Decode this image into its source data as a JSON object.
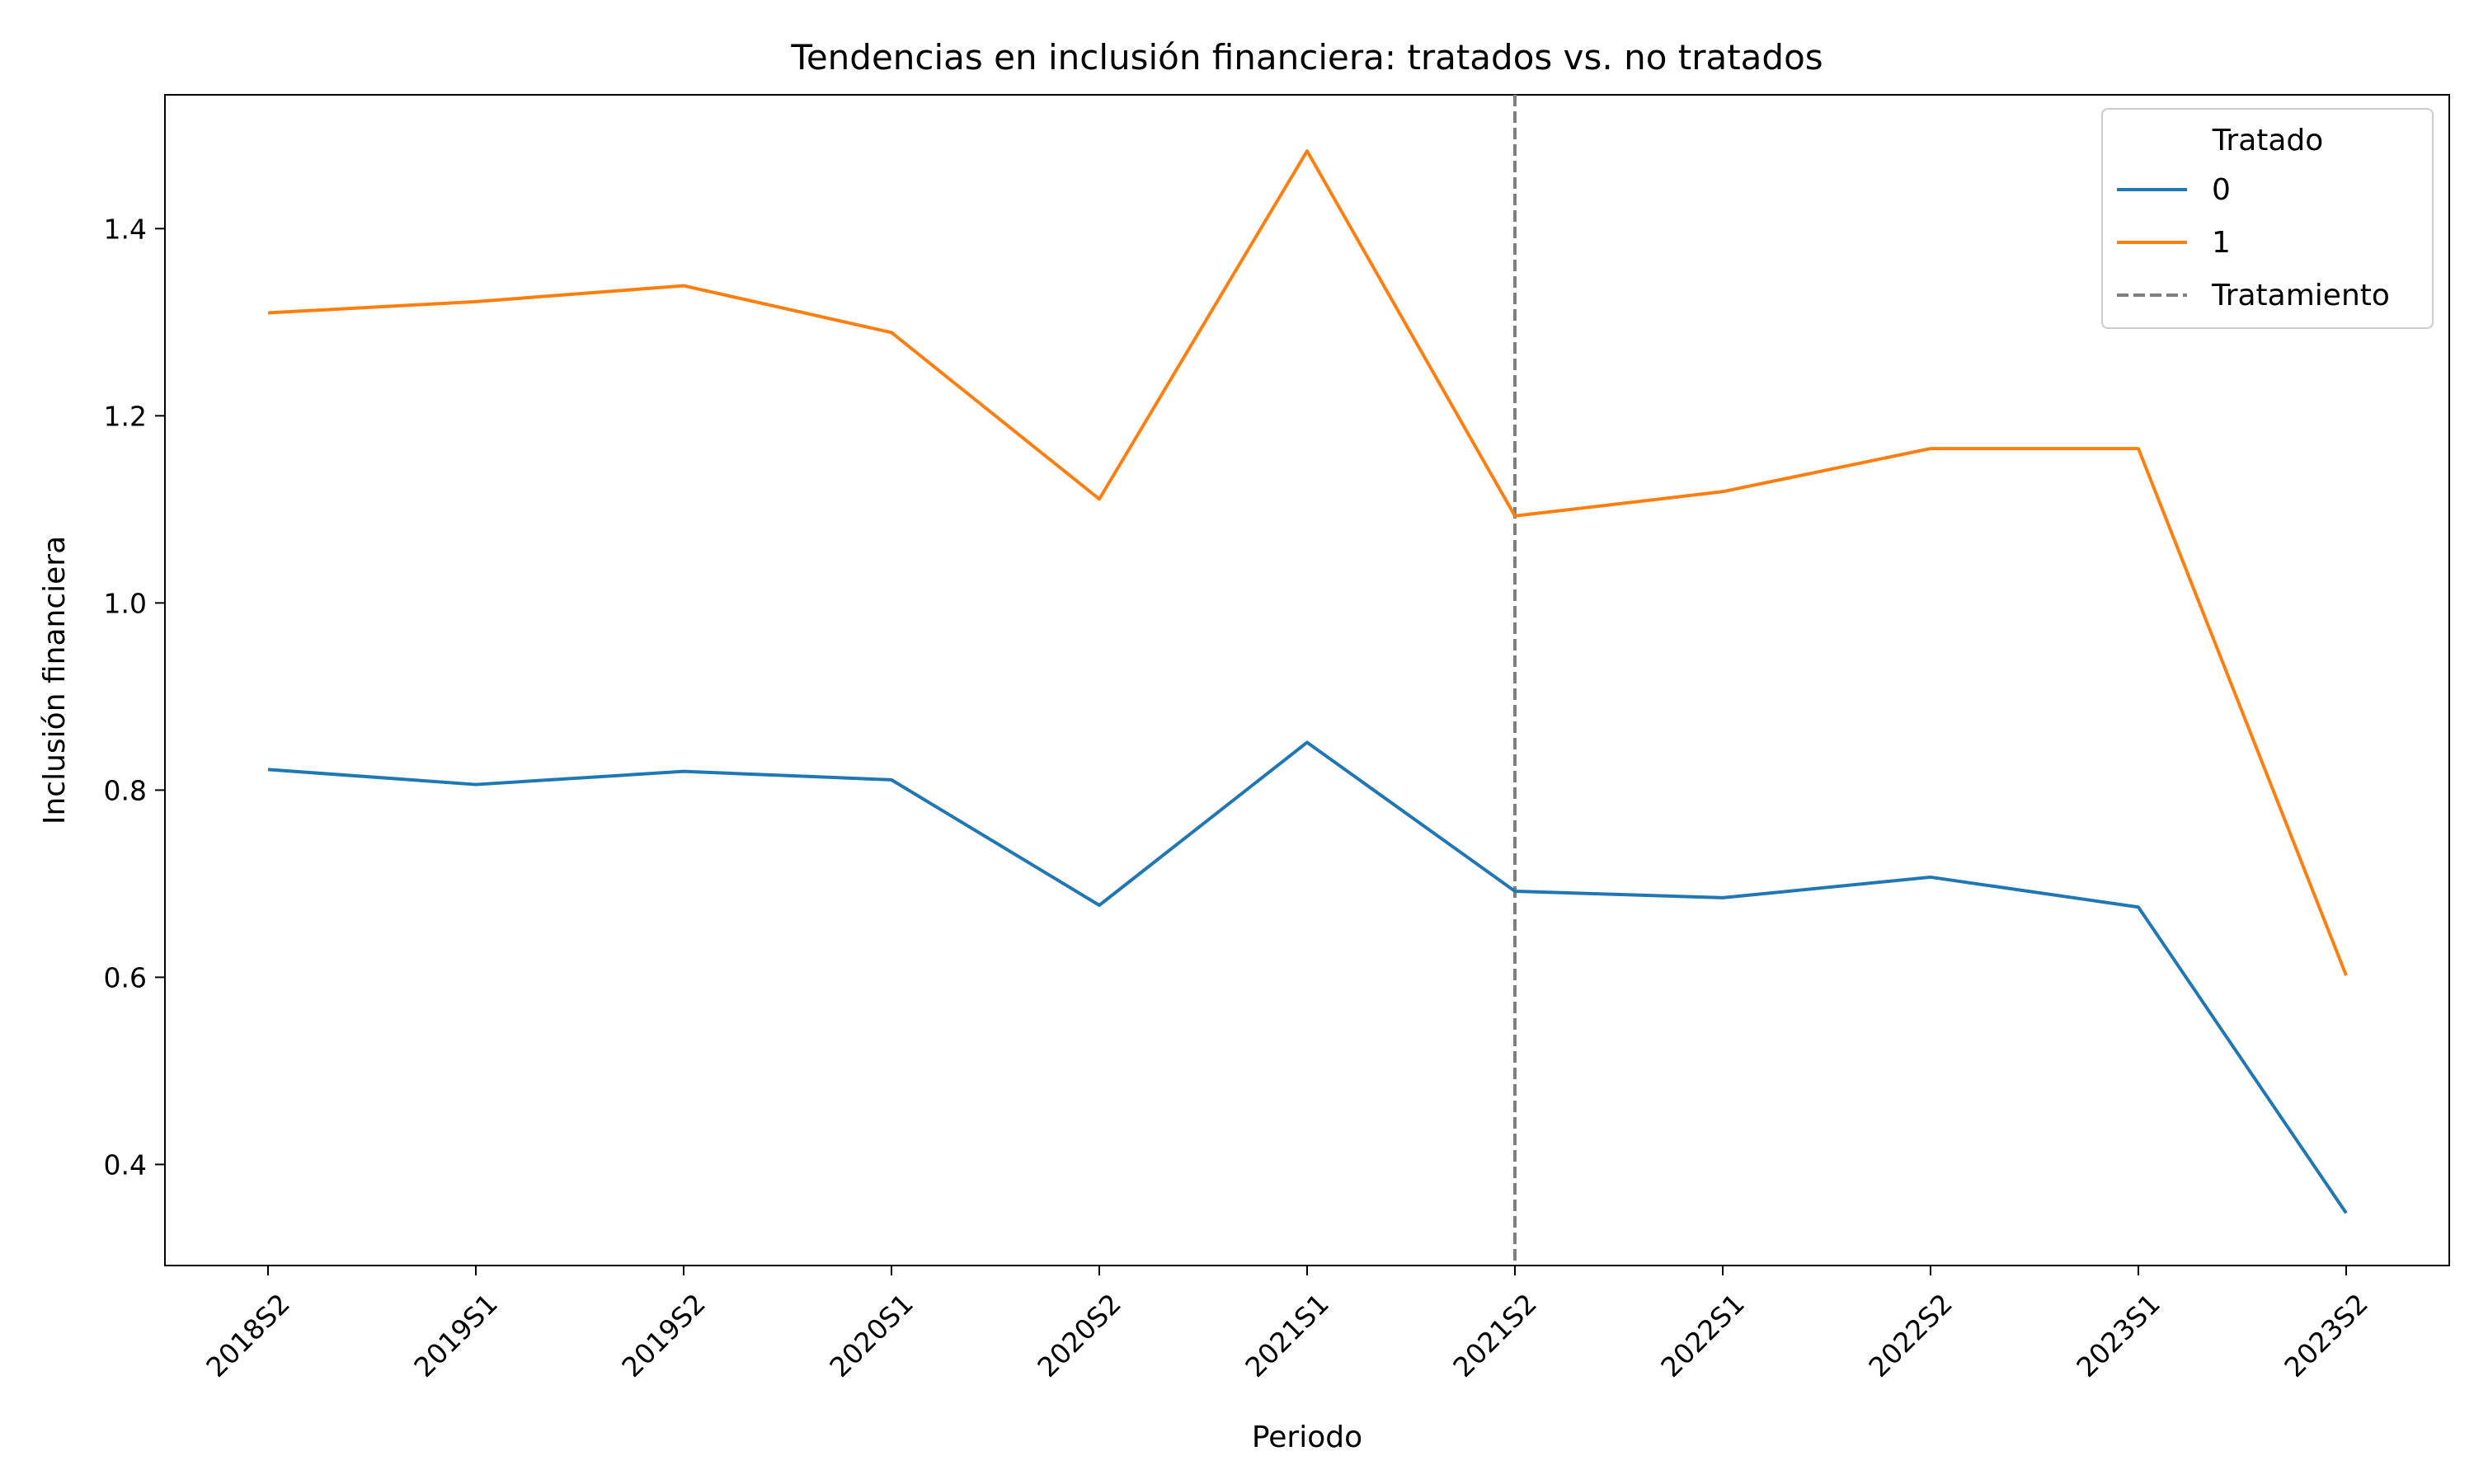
{
  "chart_data": {
    "type": "line",
    "title": "Tendencias en inclusión financiera: tratados vs. no tratados",
    "xlabel": "Periodo",
    "ylabel": "Inclusión financiera",
    "categories": [
      "2018S2",
      "2019S1",
      "2019S2",
      "2020S1",
      "2020S2",
      "2021S1",
      "2021S2",
      "2022S1",
      "2022S2",
      "2023S1",
      "2023S2"
    ],
    "ylim": [
      0.292,
      1.543
    ],
    "yticks": [
      0.4,
      0.6,
      0.8,
      1.0,
      1.2,
      1.4
    ],
    "ytick_labels": [
      "0.4",
      "0.6",
      "0.8",
      "1.0",
      "1.2",
      "1.4"
    ],
    "grid": false,
    "legend": {
      "title": "Tratado",
      "placement": "top-right",
      "treatment_label": "Tratamiento"
    },
    "series": [
      {
        "name": "0",
        "color": "#1f77b4",
        "values": [
          0.822,
          0.806,
          0.82,
          0.811,
          0.677,
          0.851,
          0.692,
          0.685,
          0.707,
          0.675,
          0.348
        ]
      },
      {
        "name": "1",
        "color": "#ff7f0e",
        "values": [
          1.31,
          1.322,
          1.339,
          1.289,
          1.111,
          1.483,
          1.093,
          1.119,
          1.165,
          1.165,
          0.602
        ]
      }
    ],
    "treatment_line": {
      "label": "Tratamiento",
      "x": "2021S2",
      "color": "#7f7f7f",
      "style": "dashed"
    }
  }
}
